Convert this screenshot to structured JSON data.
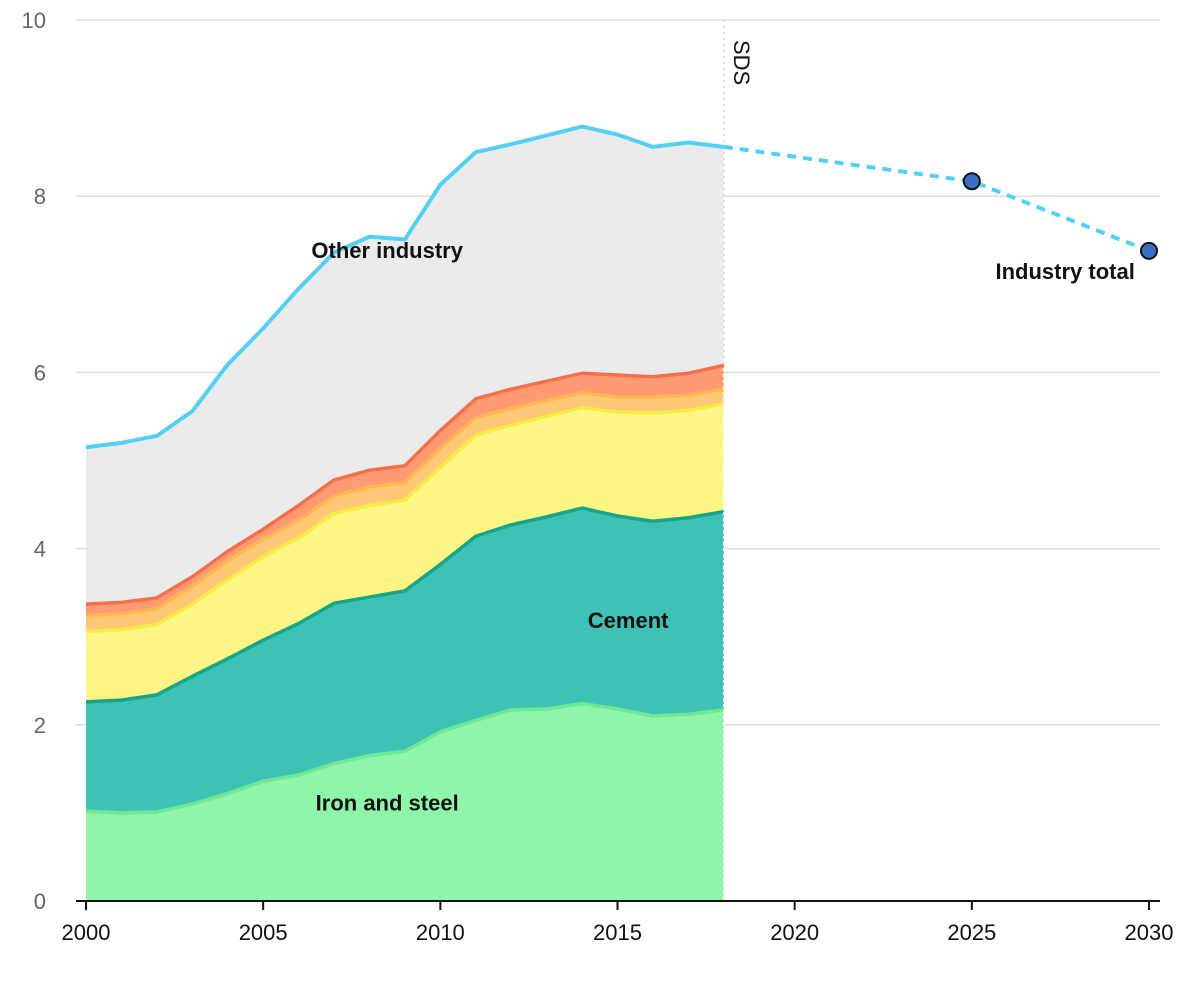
{
  "chart_data": {
    "type": "area",
    "title": "",
    "xlabel": "",
    "ylabel": "",
    "xlim": [
      2000,
      2030
    ],
    "ylim": [
      0,
      10
    ],
    "x_ticks": [
      "2000",
      "2005",
      "2010",
      "2015",
      "2020",
      "2025",
      "2030"
    ],
    "y_ticks": [
      "0",
      "2",
      "4",
      "6",
      "8",
      "10"
    ],
    "grid": "horizontal",
    "stacked": true,
    "x": [
      2000,
      2001,
      2002,
      2003,
      2004,
      2005,
      2006,
      2007,
      2008,
      2009,
      2010,
      2011,
      2012,
      2013,
      2014,
      2015,
      2016,
      2017,
      2018
    ],
    "series": [
      {
        "name": "Iron and steel",
        "fill": "#8ef5aa",
        "line": "#6ee892",
        "values": [
          1.02,
          1.0,
          1.01,
          1.1,
          1.22,
          1.36,
          1.43,
          1.56,
          1.65,
          1.7,
          1.92,
          2.05,
          2.17,
          2.18,
          2.24,
          2.18,
          2.1,
          2.12,
          2.17
        ]
      },
      {
        "name": "Cement",
        "fill": "#3fc1b5",
        "line": "#17a58a",
        "values": [
          1.24,
          1.28,
          1.33,
          1.45,
          1.53,
          1.6,
          1.72,
          1.82,
          1.8,
          1.82,
          1.9,
          2.09,
          2.1,
          2.18,
          2.22,
          2.19,
          2.21,
          2.23,
          2.25
        ]
      },
      {
        "values": [
          0.8,
          0.8,
          0.8,
          0.82,
          0.9,
          0.95,
          0.97,
          1.02,
          1.04,
          1.03,
          1.1,
          1.15,
          1.13,
          1.14,
          1.14,
          1.18,
          1.23,
          1.22,
          1.22
        ],
        "fill": "#fdf584",
        "line": "#f6ec45"
      },
      {
        "values": [
          0.18,
          0.18,
          0.18,
          0.2,
          0.21,
          0.2,
          0.2,
          0.2,
          0.21,
          0.2,
          0.22,
          0.2,
          0.19,
          0.18,
          0.17,
          0.17,
          0.18,
          0.17,
          0.17
        ],
        "fill": "#ffc877",
        "line": "#ffb752"
      },
      {
        "values": [
          0.13,
          0.13,
          0.12,
          0.11,
          0.11,
          0.11,
          0.17,
          0.18,
          0.19,
          0.19,
          0.2,
          0.21,
          0.22,
          0.22,
          0.22,
          0.25,
          0.23,
          0.25,
          0.27
        ],
        "fill": "#ff9a72",
        "line": "#f5704a"
      },
      {
        "name": "Other industry",
        "fill": "#ebebeb",
        "line": "#ebebeb",
        "values": [
          1.78,
          1.81,
          1.84,
          1.88,
          2.12,
          2.28,
          2.46,
          2.58,
          2.65,
          2.57,
          2.77,
          2.8,
          2.79,
          2.79,
          2.78,
          2.71,
          2.59,
          2.62,
          2.5
        ]
      }
    ],
    "industry_total": {
      "name": "Industry total",
      "color": "#55cff5",
      "historical": [
        [
          2000,
          5.15
        ],
        [
          2001,
          5.2
        ],
        [
          2002,
          5.28
        ],
        [
          2003,
          5.56
        ],
        [
          2004,
          6.09
        ],
        [
          2005,
          6.5
        ],
        [
          2006,
          6.95
        ],
        [
          2007,
          7.36
        ],
        [
          2008,
          7.54
        ],
        [
          2009,
          7.51
        ],
        [
          2010,
          8.13
        ],
        [
          2011,
          8.5
        ],
        [
          2012,
          8.59
        ],
        [
          2013,
          8.69
        ],
        [
          2014,
          8.79
        ],
        [
          2015,
          8.7
        ],
        [
          2016,
          8.56
        ],
        [
          2017,
          8.61
        ],
        [
          2018,
          8.56
        ]
      ],
      "projection": [
        [
          2018,
          8.56
        ],
        [
          2025,
          8.17
        ],
        [
          2030,
          7.38
        ]
      ],
      "markers": [
        [
          2025,
          8.17
        ],
        [
          2030,
          7.38
        ]
      ],
      "marker_fill": "#3a6fc4"
    },
    "divider": {
      "label": "SDS",
      "x": 2018
    },
    "annotations": [
      {
        "name": "label-other-industry",
        "text": "Other industry",
        "x": 2008.5,
        "y": 7.3
      },
      {
        "name": "label-cement",
        "text": "Cement",
        "x": 2015.3,
        "y": 3.1
      },
      {
        "name": "label-iron-and-steel",
        "text": "Iron and steel",
        "x": 2008.5,
        "y": 1.03
      },
      {
        "name": "label-industry-total",
        "text": "Industry total",
        "x": 2029.6,
        "y": 7.06,
        "anchor": "end"
      }
    ]
  }
}
